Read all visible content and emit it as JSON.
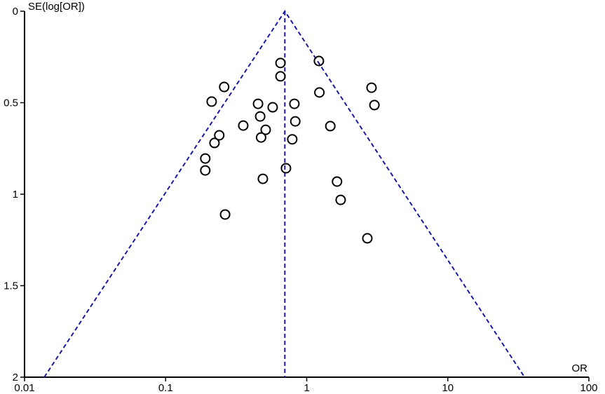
{
  "chart_data": {
    "type": "scatter",
    "x_label": "OR",
    "y_label": "SE(log[OR])",
    "xscale": "log",
    "yinvert": true,
    "xlim": [
      0.01,
      100
    ],
    "xticks": [
      0.01,
      0.1,
      1,
      10,
      100
    ],
    "ylim": [
      0,
      2
    ],
    "yticks": [
      0,
      0.5,
      1,
      1.5,
      2
    ],
    "marker_color": "#000000",
    "line_color": "#1a1aa0",
    "x": [
      0.652,
      1.22,
      0.652,
      0.26,
      2.88,
      1.23,
      0.212,
      0.452,
      0.818,
      3.02,
      0.574,
      0.468,
      0.83,
      0.355,
      1.47,
      0.512,
      0.24,
      0.475,
      0.222,
      0.79,
      0.191,
      0.713,
      0.191,
      0.489,
      1.64,
      1.74,
      0.264,
      2.69
    ],
    "values": [
      0.283,
      0.272,
      0.356,
      0.414,
      0.418,
      0.444,
      0.494,
      0.506,
      0.506,
      0.513,
      0.525,
      0.575,
      0.602,
      0.625,
      0.628,
      0.648,
      0.678,
      0.69,
      0.72,
      0.7,
      0.805,
      0.858,
      0.87,
      0.916,
      0.931,
      1.031,
      1.111,
      1.241
    ],
    "funnel": {
      "x": [
        0.0138,
        0.7,
        35
      ],
      "y": [
        2,
        0,
        2
      ]
    },
    "center_line": {
      "x": [
        0.7,
        0.7
      ],
      "y": [
        0,
        2
      ]
    }
  }
}
